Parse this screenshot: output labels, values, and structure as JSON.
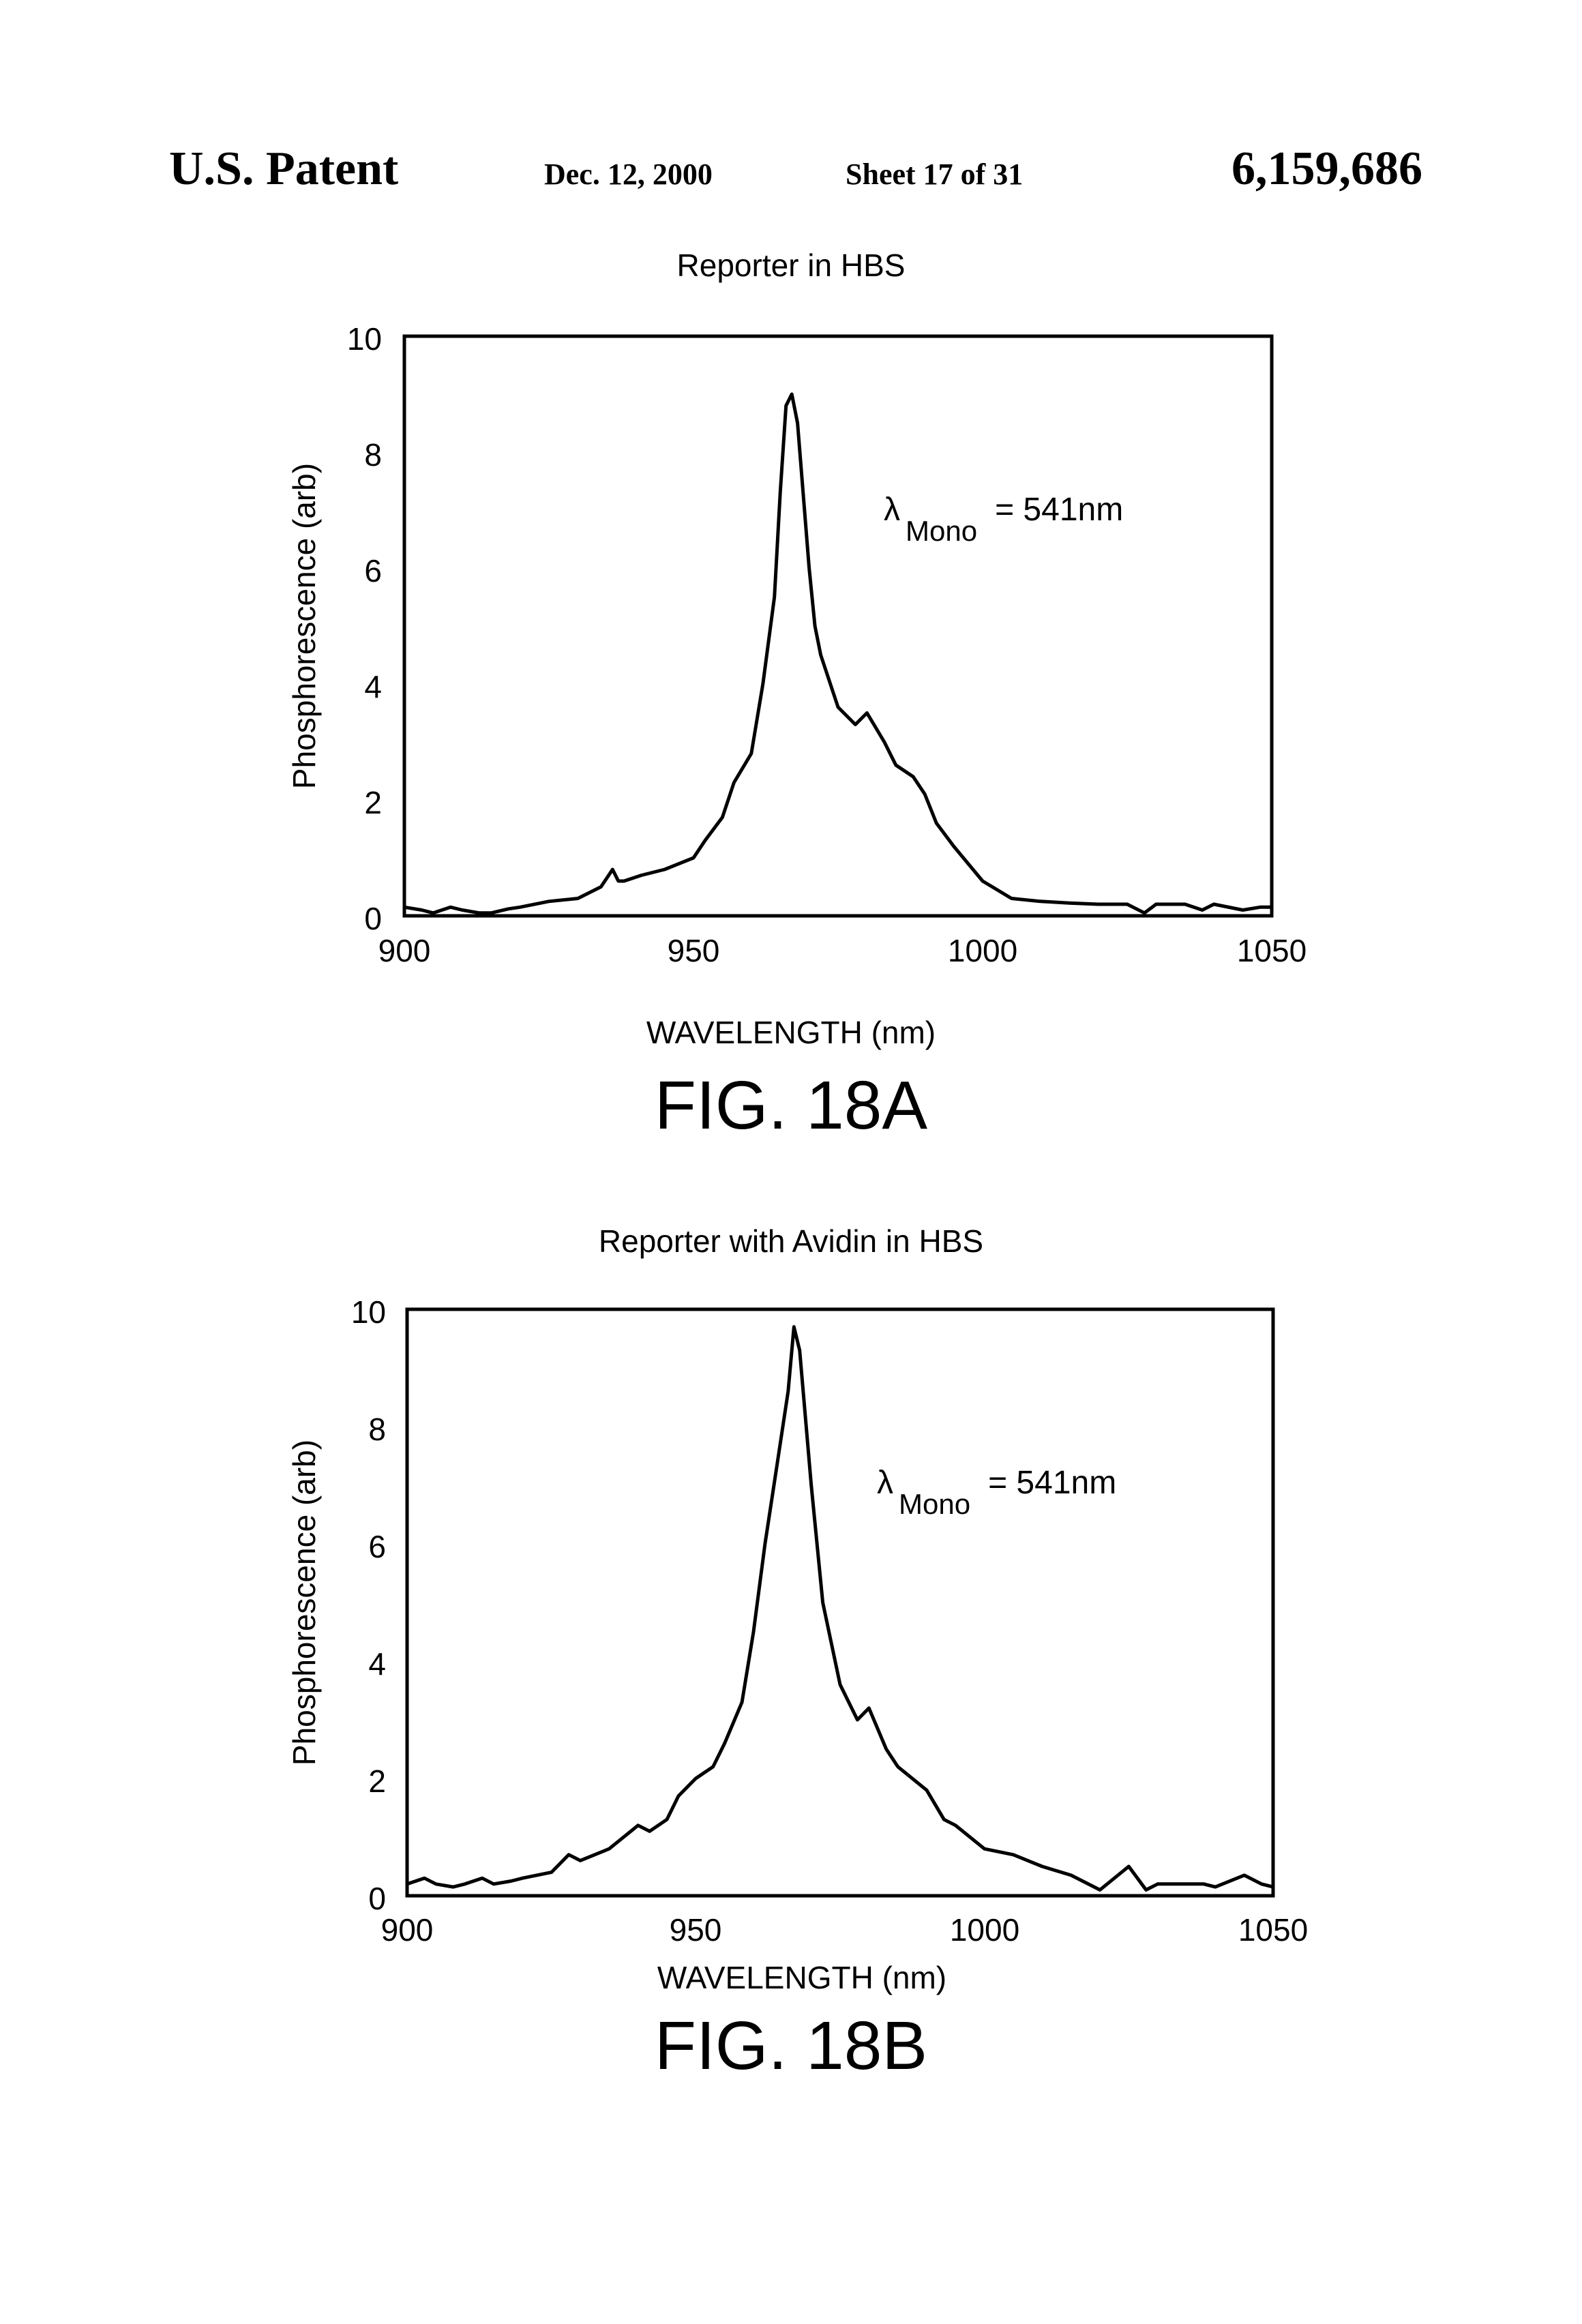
{
  "header": {
    "left": "U.S. Patent",
    "date": "Dec. 12, 2000",
    "sheet": "Sheet 17 of 31",
    "number": "6,159,686"
  },
  "figures": [
    {
      "caption": "FIG. 18A",
      "annotation": {
        "symbol": "λ",
        "subscript": "Mono",
        "value": "= 541nm"
      }
    },
    {
      "caption": "FIG. 18B",
      "annotation": {
        "symbol": "λ",
        "subscript": "Mono",
        "value": "= 541nm"
      }
    }
  ],
  "chart_data": [
    {
      "type": "line",
      "title": "Reporter in HBS",
      "xlabel": "WAVELENGTH (nm)",
      "ylabel": "Phosphorescence (arb)",
      "xlim": [
        900,
        1050
      ],
      "ylim": [
        0,
        10
      ],
      "xticks": [
        "900",
        "950",
        "1000",
        "1050"
      ],
      "yticks": [
        "0",
        "2",
        "4",
        "6",
        "8",
        "10"
      ],
      "grid": false,
      "series": [
        {
          "x": [
            900,
            903,
            905,
            908,
            910,
            913,
            915,
            918,
            920,
            925,
            930,
            934,
            936,
            937,
            938,
            941,
            945,
            950,
            952,
            955,
            957,
            960,
            962,
            964,
            965,
            966,
            967,
            968,
            970,
            971,
            972,
            975,
            978,
            980,
            983,
            985,
            988,
            990,
            992,
            995,
            1000,
            1005,
            1010,
            1015,
            1020,
            1025,
            1028,
            1030,
            1035,
            1038,
            1040,
            1045,
            1048,
            1050
          ],
          "values": [
            0.15,
            0.1,
            0.05,
            0.15,
            0.1,
            0.05,
            0.05,
            0.12,
            0.15,
            0.25,
            0.3,
            0.5,
            0.8,
            0.6,
            0.6,
            0.7,
            0.8,
            1.0,
            1.3,
            1.7,
            2.3,
            2.8,
            4.0,
            5.5,
            7.3,
            8.8,
            9.0,
            8.5,
            6.0,
            5.0,
            4.5,
            3.6,
            3.3,
            3.5,
            3.0,
            2.6,
            2.4,
            2.1,
            1.6,
            1.2,
            0.6,
            0.3,
            0.25,
            0.22,
            0.2,
            0.2,
            0.05,
            0.2,
            0.2,
            0.1,
            0.2,
            0.1,
            0.15,
            0.15
          ]
        }
      ]
    },
    {
      "type": "line",
      "title": "Reporter with Avidin in HBS",
      "xlabel": "WAVELENGTH (nm)",
      "ylabel": "Phosphorescence (arb)",
      "xlim": [
        900,
        1050
      ],
      "ylim": [
        0,
        10
      ],
      "xticks": [
        "900",
        "950",
        "1000",
        "1050"
      ],
      "yticks": [
        "0",
        "2",
        "4",
        "6",
        "8",
        "10"
      ],
      "grid": false,
      "series": [
        {
          "x": [
            900,
            903,
            905,
            908,
            910,
            913,
            915,
            918,
            920,
            925,
            928,
            930,
            935,
            940,
            942,
            945,
            947,
            950,
            953,
            955,
            958,
            960,
            962,
            964,
            966,
            967,
            968,
            970,
            972,
            975,
            978,
            980,
            983,
            985,
            990,
            993,
            995,
            1000,
            1005,
            1010,
            1015,
            1020,
            1025,
            1028,
            1030,
            1035,
            1038,
            1040,
            1045,
            1048,
            1050
          ],
          "values": [
            0.2,
            0.3,
            0.2,
            0.15,
            0.2,
            0.3,
            0.2,
            0.25,
            0.3,
            0.4,
            0.7,
            0.6,
            0.8,
            1.2,
            1.1,
            1.3,
            1.7,
            2.0,
            2.2,
            2.6,
            3.3,
            4.5,
            6.0,
            7.3,
            8.6,
            9.7,
            9.3,
            7.0,
            5.0,
            3.6,
            3.0,
            3.2,
            2.5,
            2.2,
            1.8,
            1.3,
            1.2,
            0.8,
            0.7,
            0.5,
            0.35,
            0.1,
            0.5,
            0.1,
            0.2,
            0.2,
            0.2,
            0.15,
            0.35,
            0.2,
            0.15
          ]
        }
      ]
    }
  ]
}
